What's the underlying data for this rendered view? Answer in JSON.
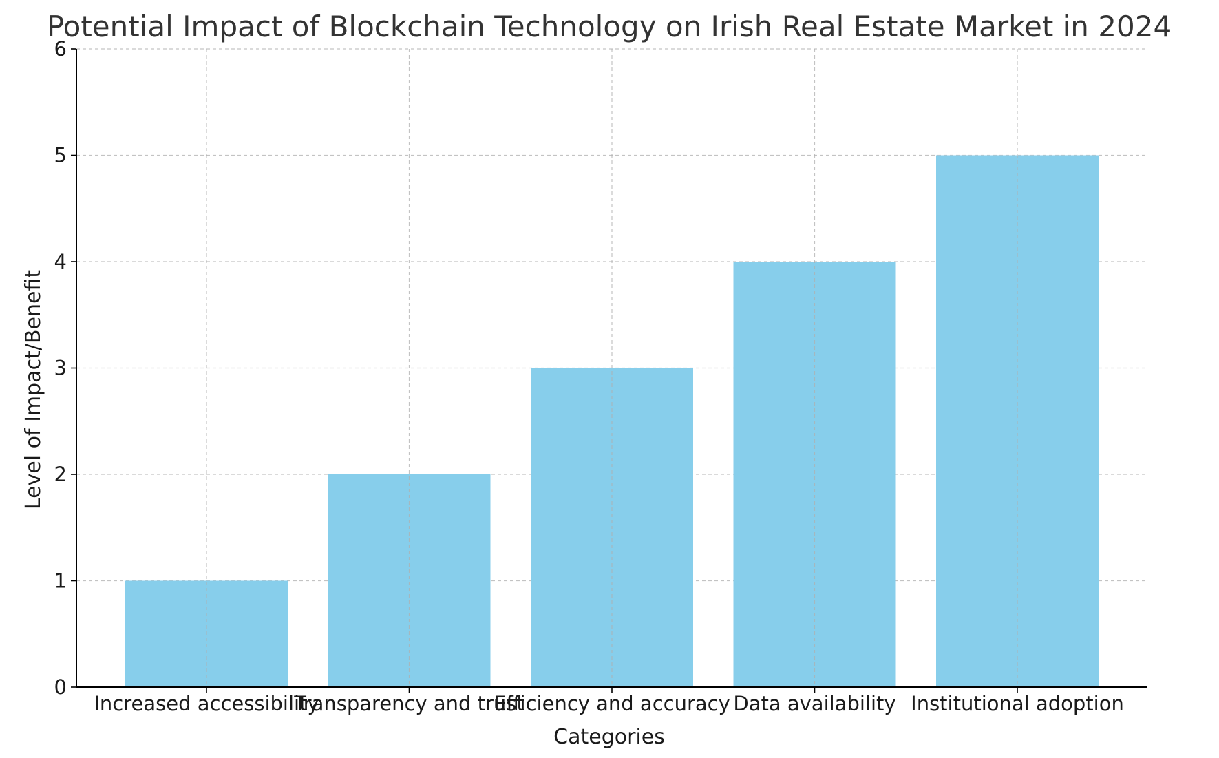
{
  "chart_data": {
    "type": "bar",
    "title": "Potential Impact of Blockchain Technology on Irish Real Estate Market in 2024",
    "xlabel": "Categories",
    "ylabel": "Level of Impact/Benefit",
    "categories": [
      "Increased accessibility",
      "Transparency and trust",
      "Efficiency and accuracy",
      "Data availability",
      "Institutional adoption"
    ],
    "values": [
      1,
      2,
      3,
      4,
      5
    ],
    "ylim": [
      0,
      6
    ],
    "yticks": [
      "0",
      "1",
      "2",
      "3",
      "4",
      "5",
      "6"
    ],
    "grid": true,
    "bar_color": "#87CEEB"
  }
}
